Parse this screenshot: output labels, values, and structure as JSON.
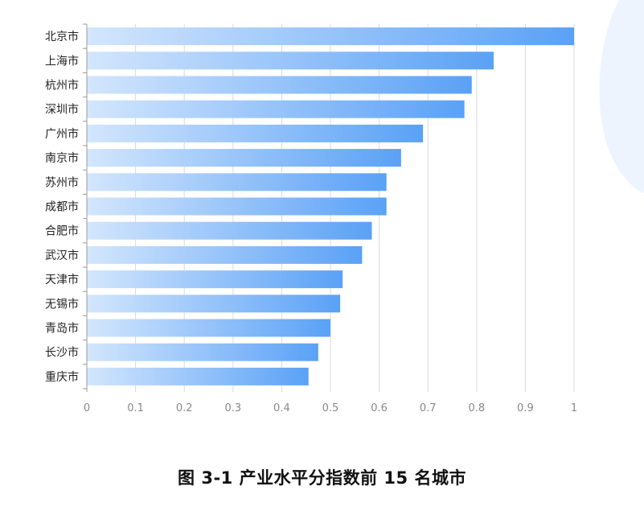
{
  "caption": "图 3-1  产业水平分指数前 15 名城市",
  "colors": {
    "bar_start": "#d3e6fd",
    "bar_end": "#5aa1f6",
    "grid": "#d9d9d9",
    "axis": "#999999",
    "label": "#222222",
    "tick": "#888888"
  },
  "chart_data": {
    "type": "bar",
    "orientation": "horizontal",
    "categories": [
      "北京市",
      "上海市",
      "杭州市",
      "深圳市",
      "广州市",
      "南京市",
      "苏州市",
      "成都市",
      "合肥市",
      "武汉市",
      "天津市",
      "无锡市",
      "青岛市",
      "长沙市",
      "重庆市"
    ],
    "values": [
      1.0,
      0.835,
      0.79,
      0.775,
      0.69,
      0.645,
      0.615,
      0.615,
      0.585,
      0.565,
      0.525,
      0.52,
      0.5,
      0.475,
      0.455
    ],
    "xlim": [
      0,
      1
    ],
    "xticks": [
      "0",
      "0.1",
      "0.2",
      "0.3",
      "0.4",
      "0.5",
      "0.6",
      "0.7",
      "0.8",
      "0.9",
      "1"
    ],
    "grid": "vertical",
    "title": "",
    "xlabel": "",
    "ylabel": ""
  }
}
